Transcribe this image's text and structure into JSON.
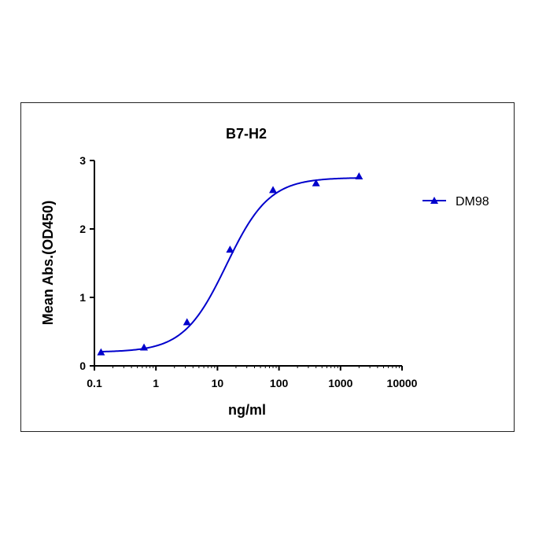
{
  "chart_data": {
    "type": "scatter",
    "title": "B7-H2",
    "xlabel": "ng/ml",
    "ylabel": "Mean Abs.(OD450)",
    "xscale": "log",
    "xlim": [
      0.1,
      10000
    ],
    "ylim": [
      0,
      3
    ],
    "x_ticks": [
      "0.1",
      "1",
      "10",
      "100",
      "1000",
      "10000"
    ],
    "y_ticks": [
      "0",
      "1",
      "2",
      "3"
    ],
    "legend_position": "right",
    "grid": false,
    "series": [
      {
        "name": "DM98",
        "color": "#0000cc",
        "marker": "triangle",
        "x": [
          0.128,
          0.64,
          3.2,
          16,
          80,
          400,
          2000
        ],
        "y": [
          0.2,
          0.27,
          0.64,
          1.7,
          2.57,
          2.67,
          2.77
        ],
        "fit": {
          "type": "4PL",
          "bottom": 0.2,
          "top": 2.75,
          "ec50": 14,
          "hill": 1.25
        }
      }
    ]
  }
}
